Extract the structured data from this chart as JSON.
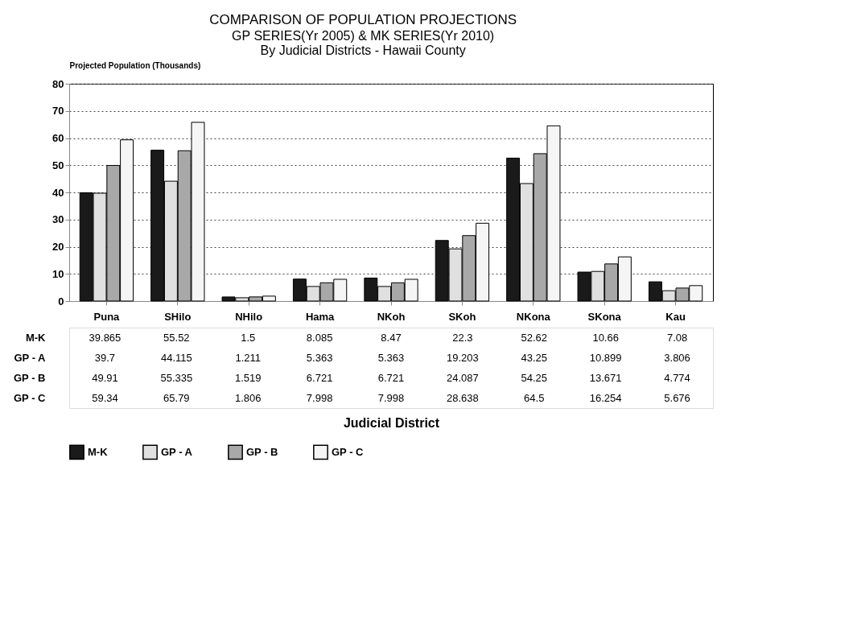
{
  "chart_data": {
    "type": "bar",
    "title": "COMPARISON OF POPULATION PROJECTIONS",
    "subtitle": [
      "GP SERIES(Yr 2005) & MK SERIES(Yr 2010)",
      "By Judicial Districts - Hawaii County"
    ],
    "annotations": [
      "Judicial District"
    ],
    "ylabel": "Projected Population (Thousands)",
    "categories": [
      "Puna",
      "SHilo",
      "NHilo",
      "Hama",
      "NKoh",
      "SKoh",
      "NKona",
      "SKona",
      "Kau"
    ],
    "series": [
      {
        "name": "M-K",
        "color": "#1a1a1a",
        "values": [
          39.865,
          55.52,
          1.5,
          8.085,
          8.47,
          22.3,
          52.62,
          10.66,
          7.08
        ]
      },
      {
        "name": "GP - A",
        "color": "#e0e0e0",
        "values": [
          39.7,
          44.115,
          1.211,
          5.363,
          5.363,
          19.203,
          43.25,
          10.899,
          3.806
        ]
      },
      {
        "name": "GP - B",
        "color": "#a8a8a8",
        "values": [
          49.91,
          55.335,
          1.519,
          6.721,
          6.721,
          24.087,
          54.25,
          13.671,
          4.774
        ]
      },
      {
        "name": "GP - C",
        "color": "#f5f5f5",
        "values": [
          59.34,
          65.79,
          1.806,
          7.998,
          7.998,
          28.638,
          64.5,
          16.254,
          5.676
        ]
      }
    ],
    "ylim": [
      0,
      80
    ],
    "yticks": [
      0,
      10,
      20,
      30,
      40,
      50,
      60,
      70,
      80
    ],
    "grid": "y",
    "legend": "bottom",
    "data_labels": true
  }
}
